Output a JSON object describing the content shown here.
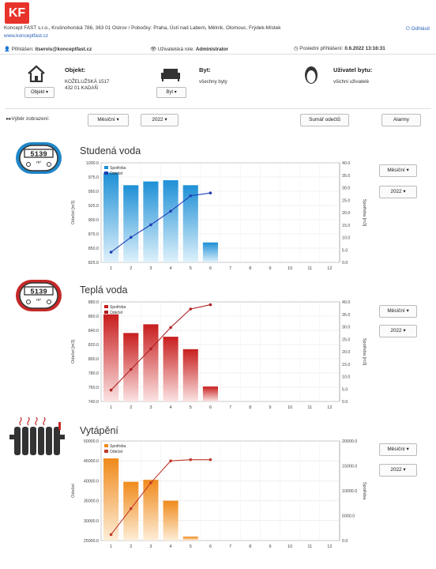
{
  "header": {
    "logo_text": "KF",
    "company": "Koncept FAST s.r.o., Krušnohorská 786, 363 01 Ostrov / Pobočky: Praha, Ústí nad Labem, Mělník, Olomouc, Frýdek-Místek",
    "website": "www.konceptfast.cz",
    "logout": "Odhlásit"
  },
  "userbar": {
    "logged_in_label": "Přihlášen:",
    "logged_in_user": "itservis@konceptfast.cz",
    "role_label": "Uživatelská role:",
    "role": "Administrator",
    "last_login_label": "Poslední přihlášení:",
    "last_login": "0.6.2022 13:16:31"
  },
  "selectors": {
    "object_label": "Objekt:",
    "object_line1": "KOŽELUŽSKÁ 1517",
    "object_line2": "432 01 KADAŇ",
    "object_button": "Objekt",
    "flat_label": "Byt:",
    "flat_value": "všechny byty",
    "flat_button": "Byt",
    "user_label": "Uživatel bytu:",
    "user_value": "všichni uživatelé"
  },
  "toolbar": {
    "view_label": "Výběr zobrazení:",
    "period": "Měsíční",
    "year": "2022",
    "summary": "Sumář odečtů",
    "alarms": "Alarmy"
  },
  "meter_digits": "5139",
  "meter_unit": "m³",
  "sections": [
    {
      "title": "Studená voda",
      "period": "Měsíční",
      "year": "2022"
    },
    {
      "title": "Teplá voda",
      "period": "Měsíční",
      "year": "2022"
    },
    {
      "title": "Vytápění",
      "period": "Měsíční",
      "year": "2022"
    }
  ],
  "chart_data": [
    {
      "type": "bar",
      "title": "Studená voda",
      "categories": [
        "1",
        "2",
        "3",
        "4",
        "5",
        "6",
        "7",
        "8",
        "9",
        "10",
        "11",
        "12"
      ],
      "ylabel_left": "Odečet [m3]",
      "ylabel_right": "Spotřeba [m3]",
      "left_ticks": [
        "825.0",
        "850.0",
        "875.0",
        "900.0",
        "925.0",
        "950.0",
        "975.0",
        "1000.0"
      ],
      "right_ticks": [
        "0.0",
        "5.0",
        "10.0",
        "15.0",
        "20.0",
        "25.0",
        "30.0",
        "35.0",
        "40.0"
      ],
      "ylim_left": [
        825,
        1000
      ],
      "ylim_right": [
        0,
        40
      ],
      "legend": [
        "Spotřeba",
        "Odečet"
      ],
      "colors": {
        "bar_top": "#1e90d6",
        "bar_bottom": "#dff1fb",
        "line": "#1f3fb5"
      },
      "series": [
        {
          "name": "Spotřeba",
          "axis": "right",
          "values": [
            36,
            31,
            32.5,
            33,
            31,
            8,
            null,
            null,
            null,
            null,
            null,
            null
          ]
        },
        {
          "name": "Odečet",
          "axis": "left",
          "values": [
            843,
            869,
            891,
            915,
            942,
            947,
            null,
            null,
            null,
            null,
            null,
            null
          ]
        }
      ]
    },
    {
      "type": "bar",
      "title": "Teplá voda",
      "categories": [
        "1",
        "2",
        "3",
        "4",
        "5",
        "6",
        "7",
        "8",
        "9",
        "10",
        "11",
        "12"
      ],
      "ylabel_left": "Odečet [m3]",
      "ylabel_right": "Spotřeba [m3]",
      "left_ticks": [
        "740.0",
        "760.0",
        "780.0",
        "800.0",
        "820.0",
        "840.0",
        "860.0",
        "880.0"
      ],
      "right_ticks": [
        "0.0",
        "5.0",
        "10.0",
        "15.0",
        "20.0",
        "25.0",
        "30.0",
        "35.0",
        "40.0"
      ],
      "ylim_left": [
        740,
        880
      ],
      "ylim_right": [
        0,
        40
      ],
      "legend": [
        "Spotřeba",
        "Odečet"
      ],
      "colors": {
        "bar_top": "#c81e1e",
        "bar_bottom": "#fbe3e3",
        "line": "#b12020"
      },
      "series": [
        {
          "name": "Spotřeba",
          "axis": "right",
          "values": [
            35,
            27.5,
            31,
            26,
            21,
            6,
            null,
            null,
            null,
            null,
            null,
            null
          ]
        },
        {
          "name": "Odečet",
          "axis": "left",
          "values": [
            756,
            785,
            814,
            844,
            870,
            876,
            null,
            null,
            null,
            null,
            null,
            null
          ]
        }
      ]
    },
    {
      "type": "bar",
      "title": "Vytápění",
      "categories": [
        "1",
        "2",
        "3",
        "4",
        "5",
        "6",
        "7",
        "8",
        "9",
        "10",
        "11",
        "12"
      ],
      "ylabel_left": "Odečet",
      "ylabel_right": "Spotřeba",
      "left_ticks": [
        "25000.0",
        "30000.0",
        "35000.0",
        "40000.0",
        "45000.0",
        "50000.0"
      ],
      "right_ticks": [
        "0.0",
        "5000.0",
        "10000.0",
        "15000.0",
        "20000.0"
      ],
      "ylim_left": [
        25000,
        50000
      ],
      "ylim_right": [
        0,
        20000
      ],
      "legend": [
        "Spotřeba",
        "Odečet"
      ],
      "colors": {
        "bar_top": "#f08a1c",
        "bar_bottom": "#fdeed8",
        "line": "#c0392b"
      },
      "series": [
        {
          "name": "Spotřeba",
          "axis": "right",
          "values": [
            16500,
            11800,
            12200,
            8000,
            800,
            0,
            null,
            null,
            null,
            null,
            null,
            null
          ]
        },
        {
          "name": "Odečet",
          "axis": "left",
          "values": [
            26500,
            33000,
            39500,
            45000,
            45300,
            45300,
            null,
            null,
            null,
            null,
            null,
            null
          ]
        }
      ]
    }
  ]
}
